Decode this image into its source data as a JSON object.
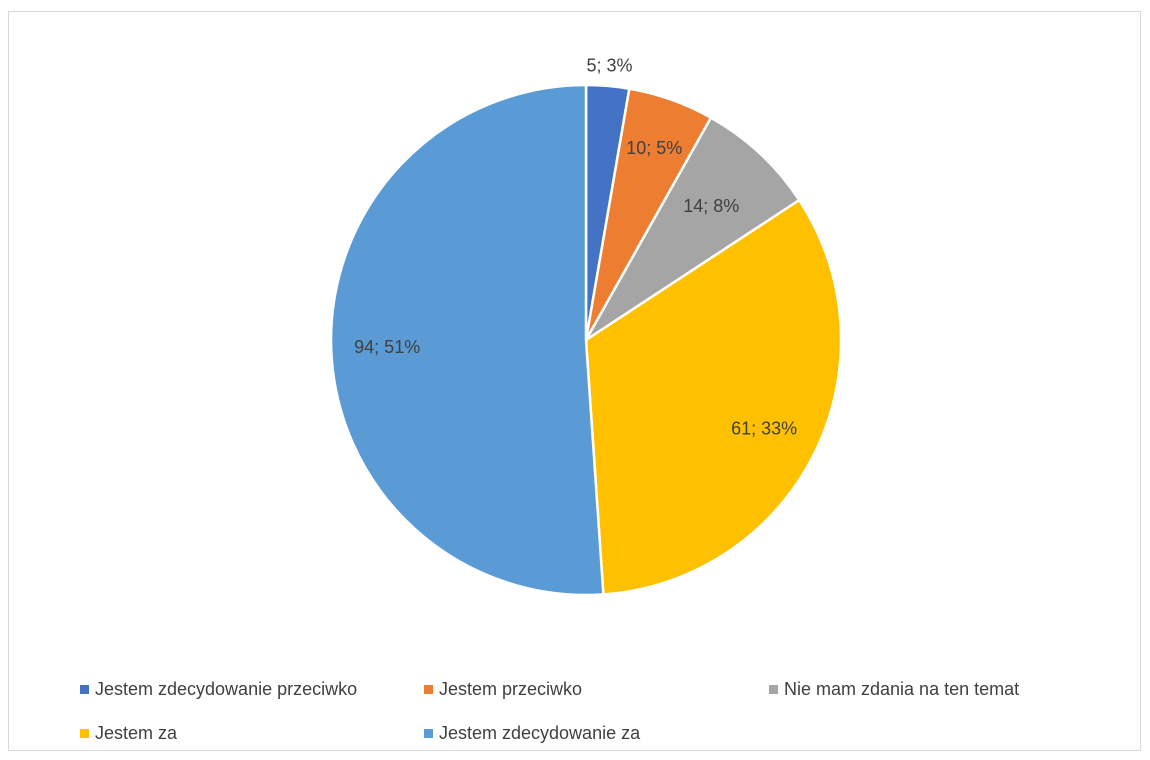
{
  "chart_data": {
    "type": "pie",
    "title": "",
    "labels": [
      "Jestem zdecydowanie przeciwko",
      "Jestem przeciwko",
      "Nie mam zdania na ten temat",
      "Jestem za",
      "Jestem zdecydowanie za"
    ],
    "values": [
      5,
      10,
      14,
      61,
      94
    ],
    "data_labels": [
      "5; 3%",
      "10; 5%",
      "14; 8%",
      "61; 33%",
      "94; 51%"
    ],
    "colors": [
      "#4472c4",
      "#ed7d31",
      "#a5a5a5",
      "#ffc000",
      "#5b9bd5"
    ],
    "legend_position": "bottom",
    "start_angle_deg": 0,
    "direction": "clockwise"
  }
}
